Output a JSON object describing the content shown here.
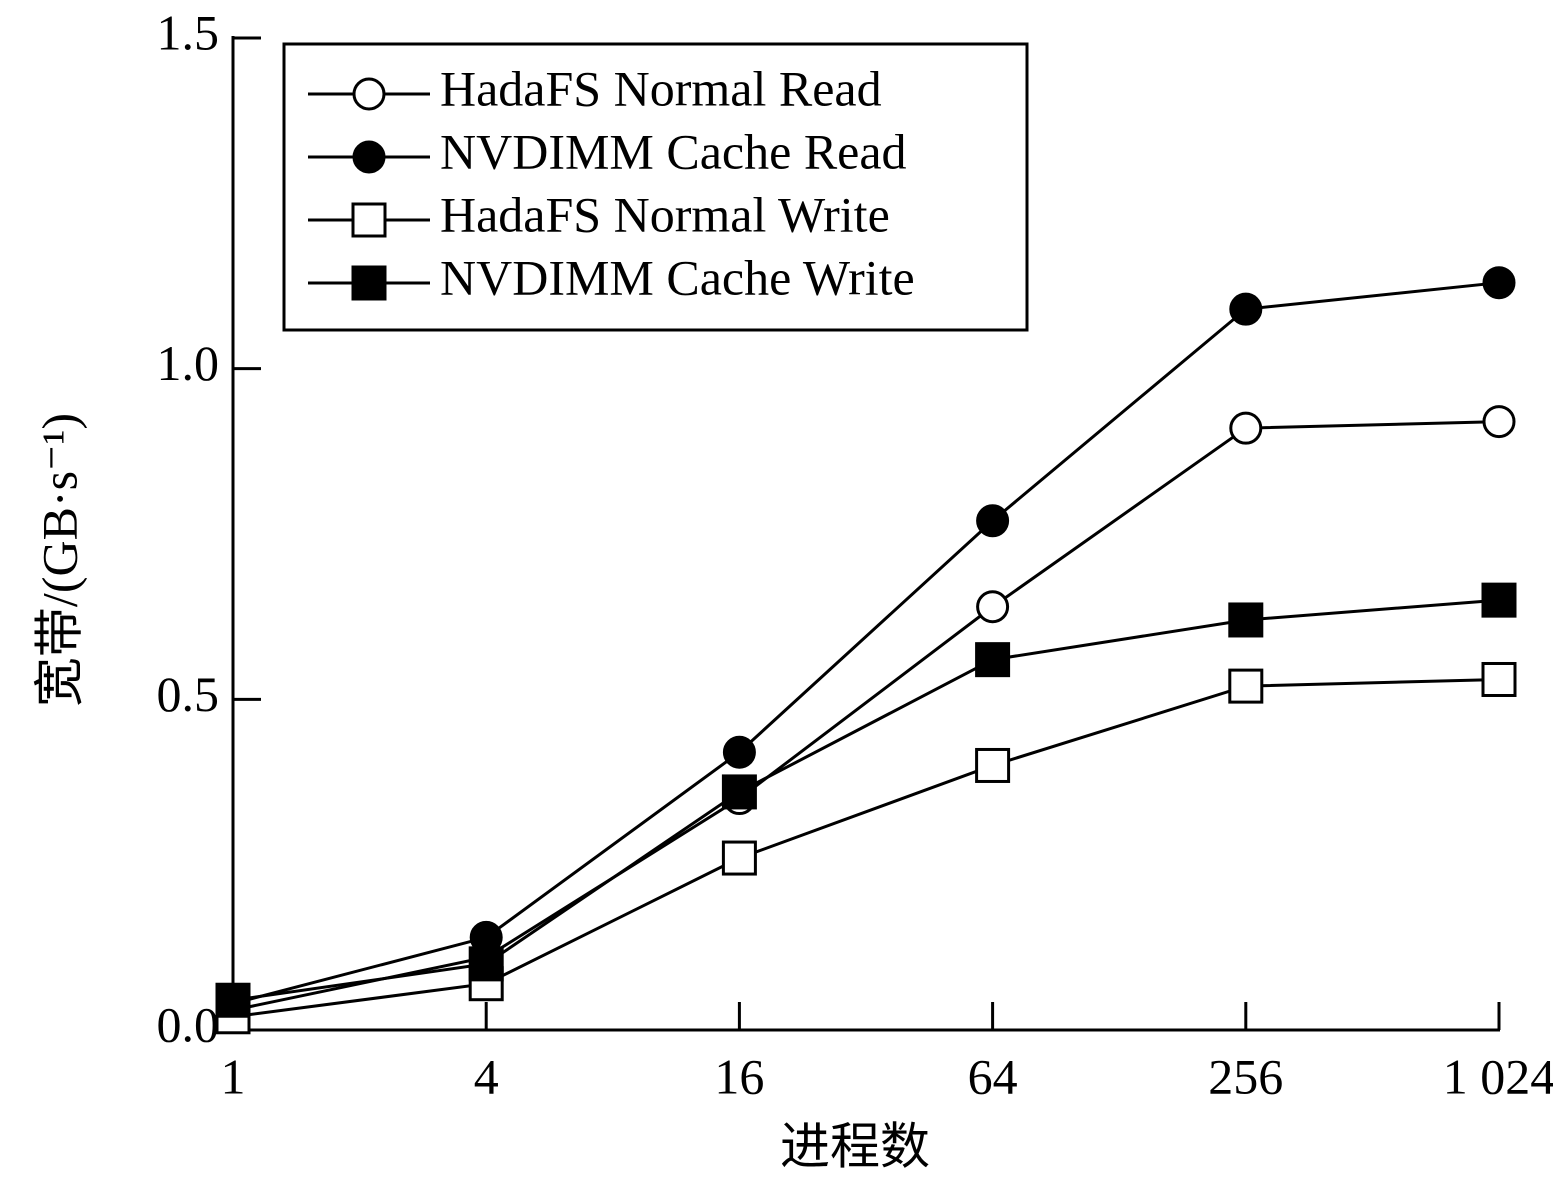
{
  "chart_data": {
    "type": "line",
    "x_label": "进程数",
    "y_label": "宽带/(GB·s⁻¹)",
    "categories": [
      "1",
      "4",
      "16",
      "64",
      "256",
      "1 024"
    ],
    "ylim": [
      0,
      1.5
    ],
    "yticks": [
      {
        "value": 0,
        "label": "0.0"
      },
      0.5,
      {
        "value": 1,
        "label": "1.0"
      },
      1.5
    ],
    "legend": "top-left",
    "series": [
      {
        "name": "HadaFS Normal Read",
        "color": "#000000",
        "marker": "circle",
        "filled": false,
        "values": [
          0.03,
          0.11,
          0.35,
          0.64,
          0.91,
          0.92
        ]
      },
      {
        "name": "NVDIMM Cache Read",
        "color": "#000000",
        "marker": "circle",
        "filled": true,
        "values": [
          0.04,
          0.14,
          0.42,
          0.77,
          1.09,
          1.13
        ]
      },
      {
        "name": "HadaFS Normal Write",
        "color": "#000000",
        "marker": "square",
        "filled": false,
        "values": [
          0.02,
          0.07,
          0.26,
          0.4,
          0.52,
          0.53
        ]
      },
      {
        "name": "NVDIMM Cache Write",
        "color": "#000000",
        "marker": "square",
        "filled": true,
        "values": [
          0.045,
          0.1,
          0.36,
          0.56,
          0.62,
          0.65
        ]
      }
    ]
  }
}
